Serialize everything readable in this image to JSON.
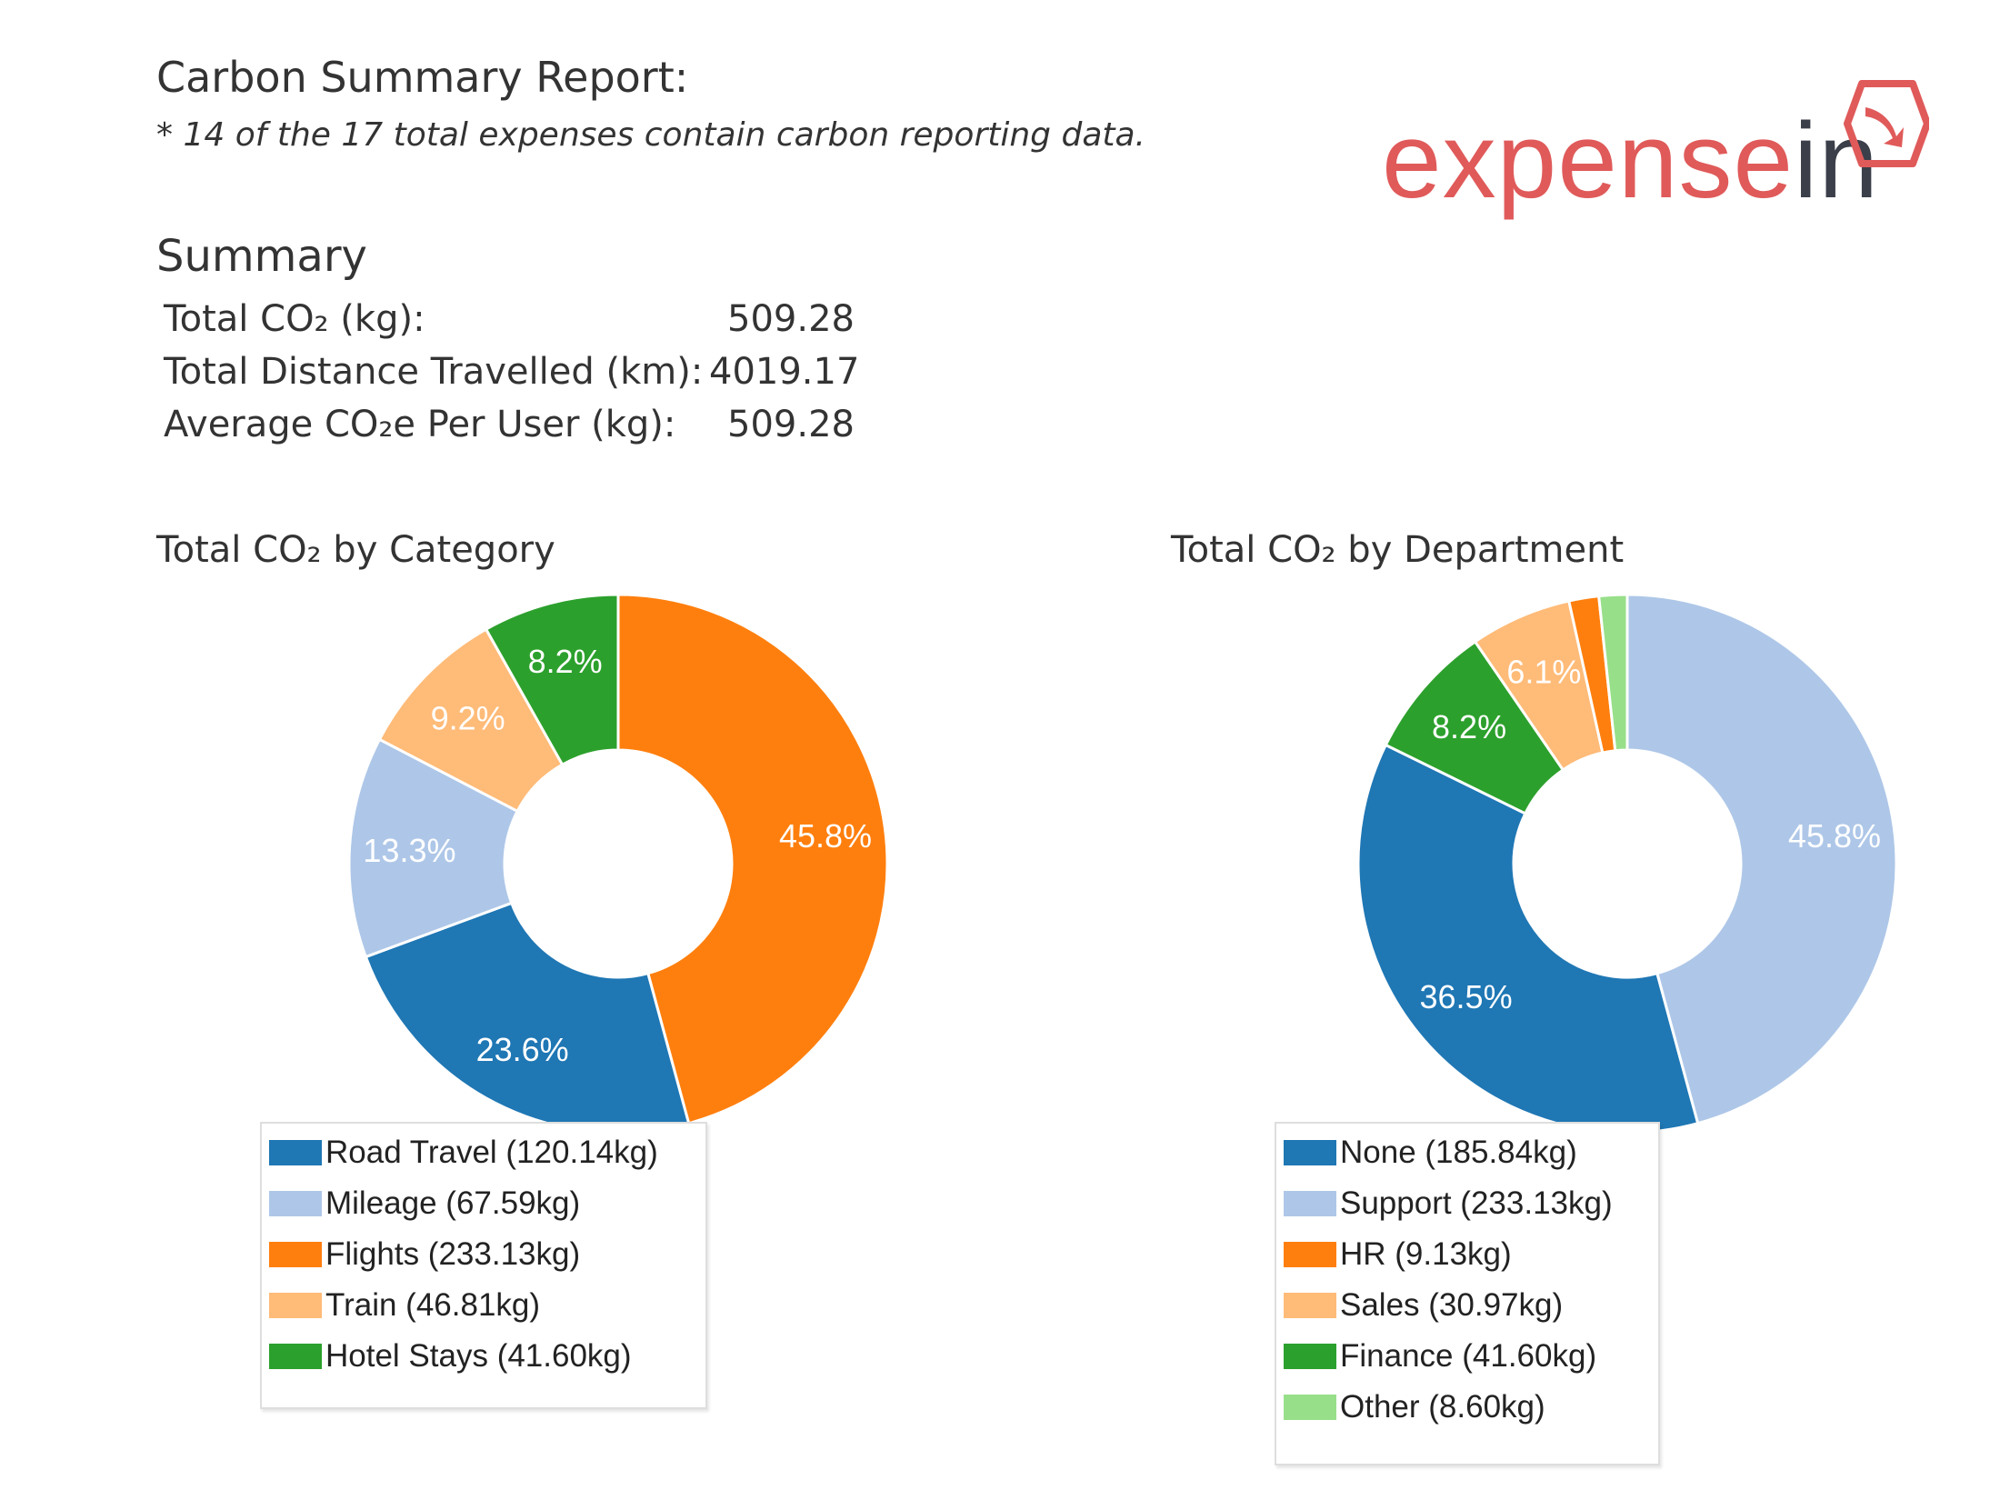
{
  "report": {
    "title": "Carbon Summary Report:",
    "note": "* 14 of the 17 total expenses contain carbon reporting data."
  },
  "logo": {
    "text_main": "expense",
    "text_accent": "in",
    "icon": "arrow-hexagon-icon",
    "color_main": "#e05a5a",
    "color_accent": "#3b3f4a"
  },
  "summary": {
    "heading": "Summary",
    "rows": [
      {
        "label": "Total CO₂ (kg):",
        "value": "509.28"
      },
      {
        "label": "Total Distance Travelled (km):",
        "value": "4019.17"
      },
      {
        "label": "Average CO₂e Per User (kg):",
        "value": "509.28"
      }
    ]
  },
  "chart_data": [
    {
      "type": "pie",
      "variant": "donut",
      "title": "Total CO₂ by Category",
      "slices": [
        {
          "name": "Flights (233.13kg)",
          "value": 233.13,
          "percent_label": "45.8%",
          "color": "#ff7f0e",
          "label_color": "#ffffff"
        },
        {
          "name": "Road Travel (120.14kg)",
          "value": 120.14,
          "percent_label": "23.6%",
          "color": "#1f77b4",
          "label_color": "#ffffff"
        },
        {
          "name": "Mileage (67.59kg)",
          "value": 67.59,
          "percent_label": "13.3%",
          "color": "#aec7e8",
          "label_color": "#ffffff"
        },
        {
          "name": "Train (46.81kg)",
          "value": 46.81,
          "percent_label": "9.2%",
          "color": "#ffbb78",
          "label_color": "#ffffff"
        },
        {
          "name": "Hotel Stays (41.60kg)",
          "value": 41.6,
          "percent_label": "8.2%",
          "color": "#2ca02c",
          "label_color": "#ffffff"
        }
      ],
      "legend": [
        {
          "label": "Road Travel (120.14kg)",
          "color": "#1f77b4"
        },
        {
          "label": "Mileage (67.59kg)",
          "color": "#aec7e8"
        },
        {
          "label": "Flights (233.13kg)",
          "color": "#ff7f0e"
        },
        {
          "label": "Train (46.81kg)",
          "color": "#ffbb78"
        },
        {
          "label": "Hotel Stays (41.60kg)",
          "color": "#2ca02c"
        }
      ],
      "legend_position": "bottom"
    },
    {
      "type": "pie",
      "variant": "donut",
      "title": "Total CO₂ by Department",
      "slices": [
        {
          "name": "Support (233.13kg)",
          "value": 233.13,
          "percent_label": "45.8%",
          "color": "#aec7e8",
          "label_color": "#ffffff"
        },
        {
          "name": "None (185.84kg)",
          "value": 185.84,
          "percent_label": "36.5%",
          "color": "#1f77b4",
          "label_color": "#ffffff"
        },
        {
          "name": "Finance (41.60kg)",
          "value": 41.6,
          "percent_label": "8.2%",
          "color": "#2ca02c",
          "label_color": "#ffffff"
        },
        {
          "name": "Sales (30.97kg)",
          "value": 30.97,
          "percent_label": "6.1%",
          "color": "#ffbb78",
          "label_color": "#ffffff"
        },
        {
          "name": "HR (9.13kg)",
          "value": 9.13,
          "percent_label": "",
          "color": "#ff7f0e",
          "label_color": "#ffffff"
        },
        {
          "name": "Other (8.60kg)",
          "value": 8.6,
          "percent_label": "",
          "color": "#98df8a",
          "label_color": "#ffffff"
        }
      ],
      "legend": [
        {
          "label": "None (185.84kg)",
          "color": "#1f77b4"
        },
        {
          "label": "Support (233.13kg)",
          "color": "#aec7e8"
        },
        {
          "label": "HR (9.13kg)",
          "color": "#ff7f0e"
        },
        {
          "label": "Sales (30.97kg)",
          "color": "#ffbb78"
        },
        {
          "label": "Finance (41.60kg)",
          "color": "#2ca02c"
        },
        {
          "label": "Other (8.60kg)",
          "color": "#98df8a"
        }
      ],
      "legend_position": "bottom"
    }
  ]
}
